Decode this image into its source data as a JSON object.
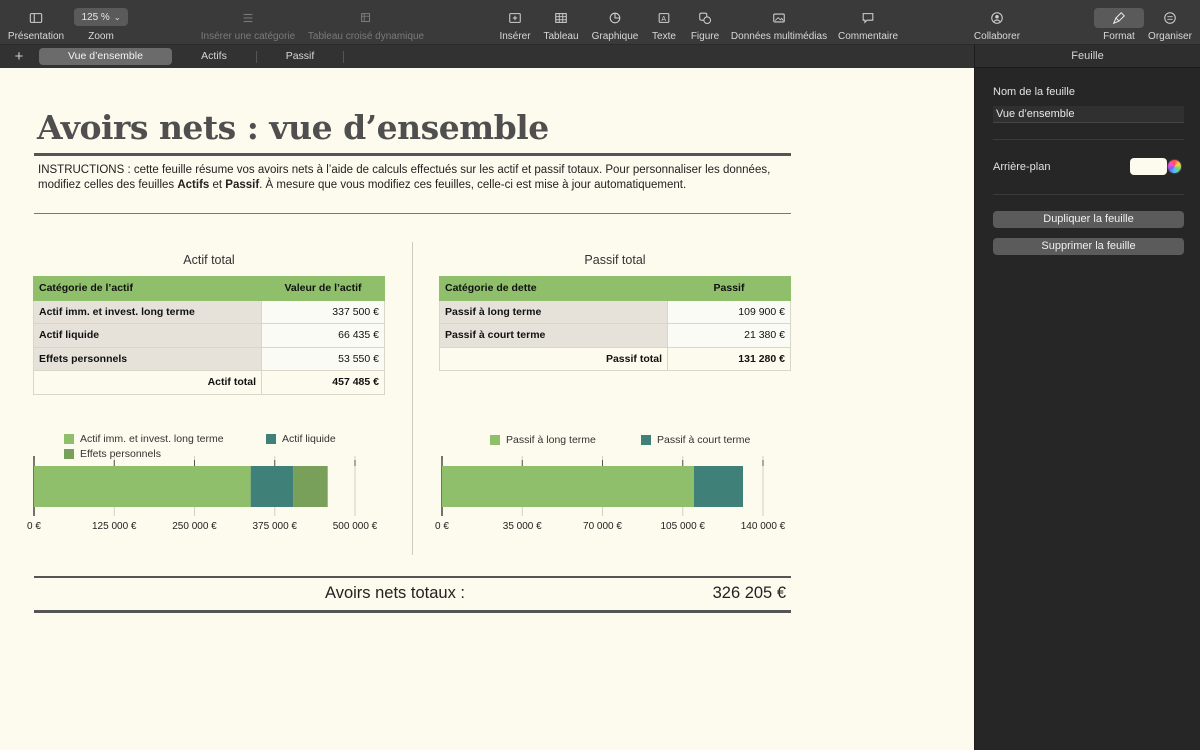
{
  "toolbar": {
    "presentation": "Présentation",
    "zoom_label": "Zoom",
    "zoom_value": "125 %",
    "insert_category": "Insérer une catégorie",
    "pivot_table": "Tableau croisé dynamique",
    "insert": "Insérer",
    "table": "Tableau",
    "chart": "Graphique",
    "text": "Texte",
    "shape": "Figure",
    "media": "Données multimédias",
    "comment": "Commentaire",
    "collaborate": "Collaborer",
    "format": "Format",
    "organize": "Organiser"
  },
  "tabs": {
    "add": "+",
    "items": [
      "Vue d’ensemble",
      "Actifs",
      "Passif"
    ],
    "active_index": 0
  },
  "sheet": {
    "title": "Avoirs nets : vue d’ensemble",
    "instructions_pre": "INSTRUCTIONS : cette feuille résume vos avoirs nets à l’aide de calculs effectués sur les actif et passif totaux. Pour personnaliser les données, modifiez celles des feuilles ",
    "instructions_bold1": "Actifs",
    "instructions_mid": " et ",
    "instructions_bold2": "Passif",
    "instructions_post": ". À mesure que vous modifiez ces feuilles, celle-ci est mise à jour automatiquement.",
    "assets": {
      "section_title": "Actif total",
      "header_category": "Catégorie de l’actif",
      "header_value": "Valeur de l’actif",
      "rows": [
        {
          "label": "Actif imm. et invest. long terme",
          "value": "337 500 €"
        },
        {
          "label": "Actif liquide",
          "value": "66 435 €"
        },
        {
          "label": "Effets personnels",
          "value": "53 550 €"
        }
      ],
      "total_label": "Actif total",
      "total_value": "457 485 €"
    },
    "liabilities": {
      "section_title": "Passif total",
      "header_category": "Catégorie de dette",
      "header_value": "Passif",
      "rows": [
        {
          "label": "Passif à long terme",
          "value": "109 900 €"
        },
        {
          "label": "Passif à court terme",
          "value": "21 380 €"
        }
      ],
      "total_label": "Passif total",
      "total_value": "131 280 €"
    },
    "net_worth_label": "Avoirs nets totaux :",
    "net_worth_value": "326 205 €"
  },
  "chart_data": [
    {
      "type": "bar",
      "stacked": true,
      "orientation": "horizontal",
      "series": [
        {
          "name": "Actif imm. et invest. long terme",
          "values": [
            337500
          ],
          "color": "#8fbf6b"
        },
        {
          "name": "Actif liquide",
          "values": [
            66435
          ],
          "color": "#3f8078"
        },
        {
          "name": "Effets personnels",
          "values": [
            53550
          ],
          "color": "#78a05a"
        }
      ],
      "xlim": [
        0,
        500000
      ],
      "ticks": [
        0,
        125000,
        250000,
        375000,
        500000
      ],
      "tick_labels": [
        "0 €",
        "125 000 €",
        "250 000 €",
        "375 000 €",
        "500 000 €"
      ],
      "legend": "top"
    },
    {
      "type": "bar",
      "stacked": true,
      "orientation": "horizontal",
      "series": [
        {
          "name": "Passif à long terme",
          "values": [
            109900
          ],
          "color": "#8fbf6b"
        },
        {
          "name": "Passif à court terme",
          "values": [
            21380
          ],
          "color": "#3f8078"
        }
      ],
      "xlim": [
        0,
        140000
      ],
      "ticks": [
        0,
        35000,
        70000,
        105000,
        140000
      ],
      "tick_labels": [
        "0 €",
        "35 000 €",
        "70 000 €",
        "105 000 €",
        "140 000 €"
      ],
      "legend": "top"
    }
  ],
  "sidebar": {
    "header": "Feuille",
    "sheet_name_label": "Nom de la feuille",
    "sheet_name_value": "Vue d’ensemble",
    "background_label": "Arrière-plan",
    "duplicate_button": "Dupliquer la feuille",
    "delete_button": "Supprimer la feuille"
  }
}
